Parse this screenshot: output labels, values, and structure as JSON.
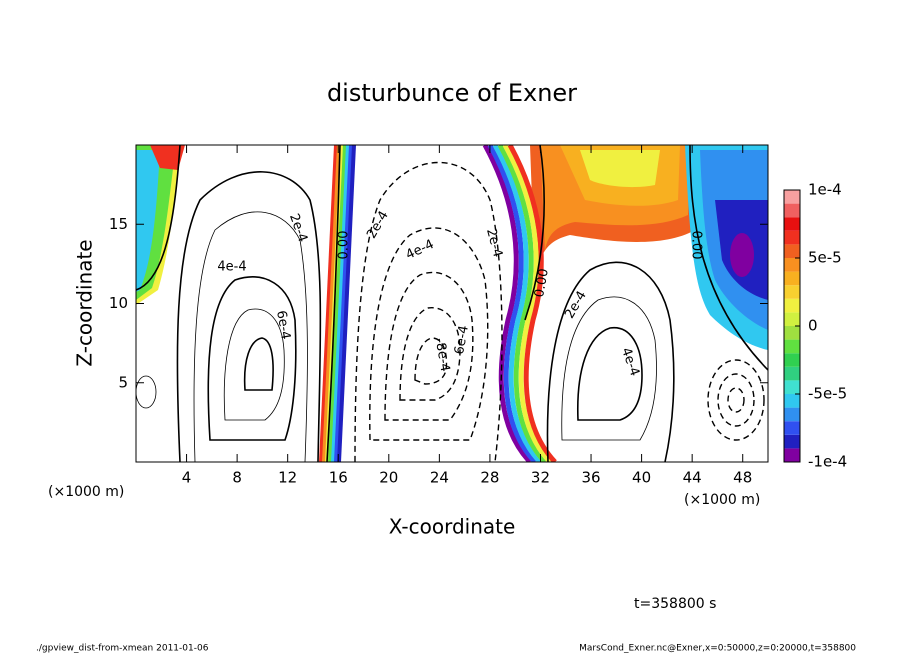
{
  "chart_data": {
    "type": "contour",
    "title": "disturbunce of Exner",
    "xlabel": "X-coordinate",
    "ylabel": "Z-coordinate",
    "x_unit": "(×1000 m)",
    "time_label": "t=358800 s",
    "footer_left": "./gpview_dist-from-xmean  2011-01-06",
    "footer_right": "MarsCond_Exner.nc@Exner,x=0:50000,z=0:20000,t=358800",
    "xlim": [
      0,
      50
    ],
    "xticks": [
      4,
      8,
      12,
      16,
      20,
      24,
      28,
      32,
      36,
      40,
      44,
      48
    ],
    "ylim": [
      0,
      20
    ],
    "yticks": [
      5,
      10,
      15
    ],
    "clim": [
      -0.0001,
      0.0001
    ],
    "cticks": [
      {
        "value": 0.0001,
        "label": "1e-4"
      },
      {
        "value": 5e-05,
        "label": "5e-5"
      },
      0,
      {
        "value": -5e-05,
        "label": "-5e-5"
      },
      {
        "value": -0.0001,
        "label": "-1e-4"
      }
    ],
    "colormap": [
      "#8000a0",
      "#2020c0",
      "#3050f0",
      "#3090f0",
      "#30c8f0",
      "#40e0d0",
      "#30d080",
      "#30d050",
      "#60e040",
      "#a0e040",
      "#d0f040",
      "#f0f040",
      "#f8d030",
      "#f8b020",
      "#f89020",
      "#f06020",
      "#f03020",
      "#e81010",
      "#f06060",
      "#f8a0a0"
    ],
    "contour_labels": [
      "2e-4",
      "4e-4",
      "6e-4",
      "0.00",
      "2e-4",
      "4e-4",
      "-8e-4",
      "6e-4",
      "2e-4",
      "0.00",
      "2e-4",
      "4e-4",
      "0.00"
    ]
  }
}
